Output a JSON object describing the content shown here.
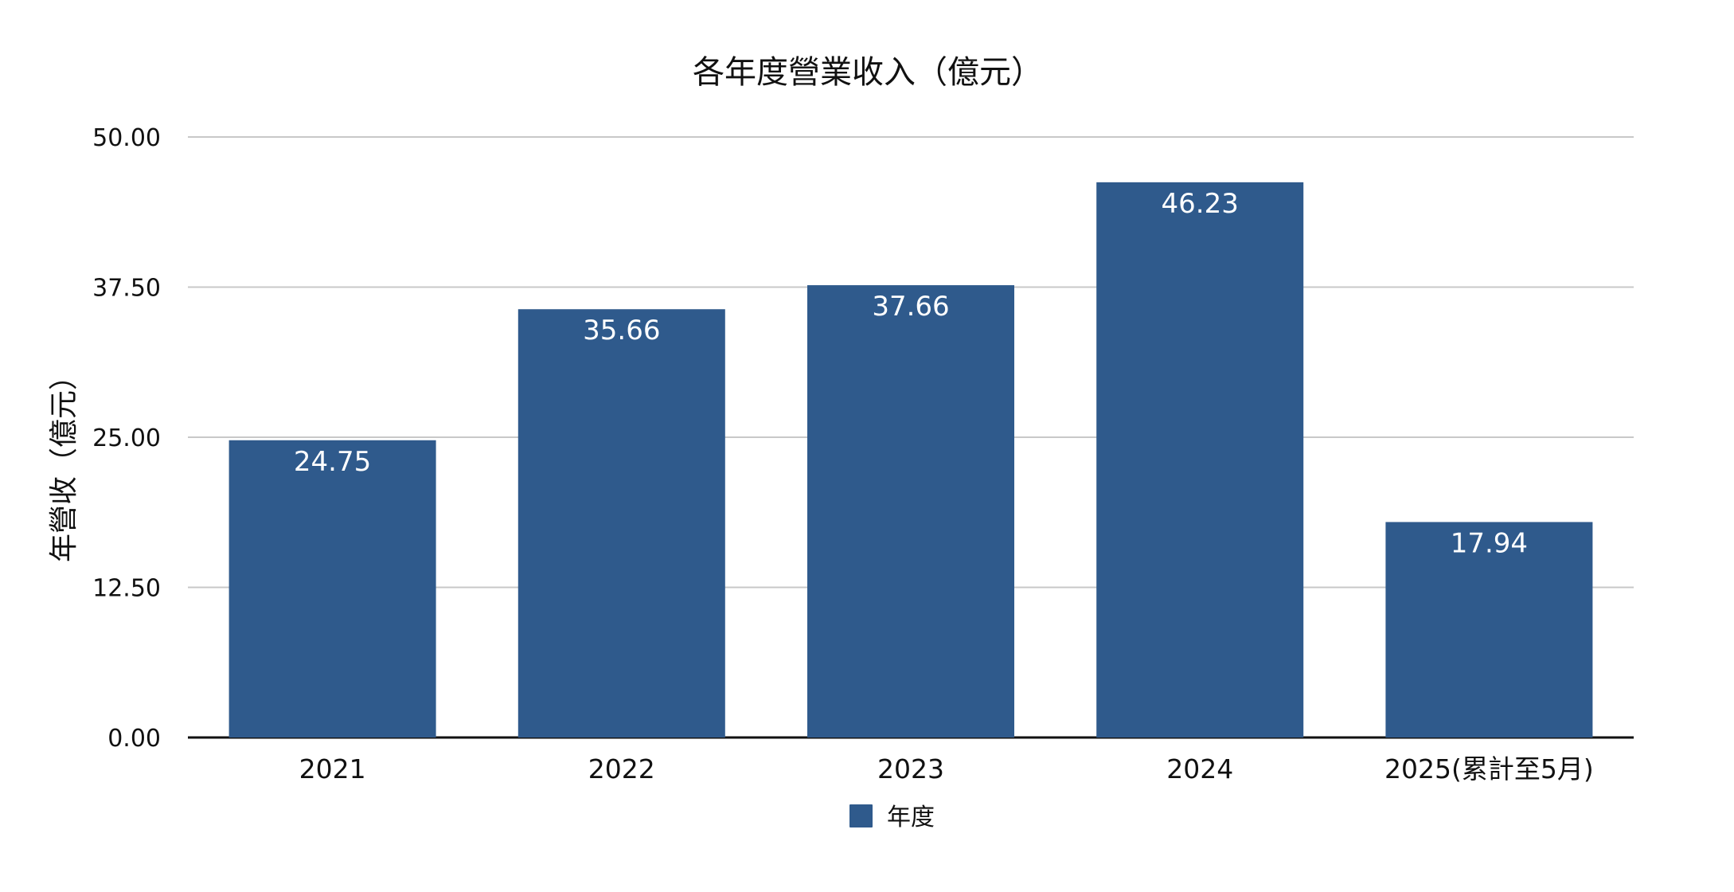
{
  "chart_data": {
    "type": "bar",
    "title": "各年度營業收入（億元）",
    "ylabel": "年營收（億元）",
    "xlabel": "",
    "categories": [
      "2021",
      "2022",
      "2023",
      "2024",
      "2025(累計至5月)"
    ],
    "series": [
      {
        "name": "年度",
        "values": [
          24.75,
          35.66,
          37.66,
          46.23,
          17.94
        ],
        "data_labels": [
          "24.75",
          "35.66",
          "37.66",
          "46.23",
          "17.94"
        ],
        "color": "#2f5a8c"
      }
    ],
    "ylim": [
      0,
      50
    ],
    "yticks": [
      0,
      12.5,
      25,
      37.5,
      50
    ],
    "ytick_labels": [
      "0.00",
      "12.50",
      "25.00",
      "37.50",
      "50.00"
    ],
    "grid": true,
    "legend": "bottom-center"
  },
  "colors": {
    "bar": "#2f5a8c",
    "grid": "#c8c8c8",
    "axis": "#111111"
  }
}
